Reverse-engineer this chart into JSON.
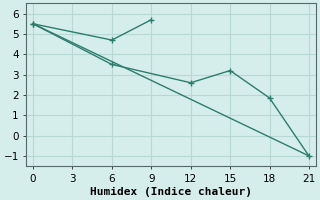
{
  "line1_x": [
    0,
    6,
    9
  ],
  "line1_y": [
    5.5,
    4.7,
    5.7
  ],
  "line2_x": [
    0,
    6,
    12,
    15,
    18,
    21
  ],
  "line2_y": [
    5.5,
    3.5,
    2.6,
    3.2,
    1.85,
    -1.0
  ],
  "line3_x": [
    0,
    21
  ],
  "line3_y": [
    5.5,
    -1.0
  ],
  "line_color": "#2d7d6e",
  "bg_color": "#d6eeeb",
  "grid_color": "#b8d8d4",
  "xlabel": "Humidex (Indice chaleur)",
  "xlim": [
    -0.5,
    21.5
  ],
  "ylim": [
    -1.5,
    6.5
  ],
  "xticks": [
    0,
    3,
    6,
    9,
    12,
    15,
    18,
    21
  ],
  "yticks": [
    -1,
    0,
    1,
    2,
    3,
    4,
    5,
    6
  ],
  "marker": "+",
  "markersize": 5,
  "linewidth": 1.0,
  "xlabel_fontsize": 8,
  "tick_fontsize": 7.5
}
